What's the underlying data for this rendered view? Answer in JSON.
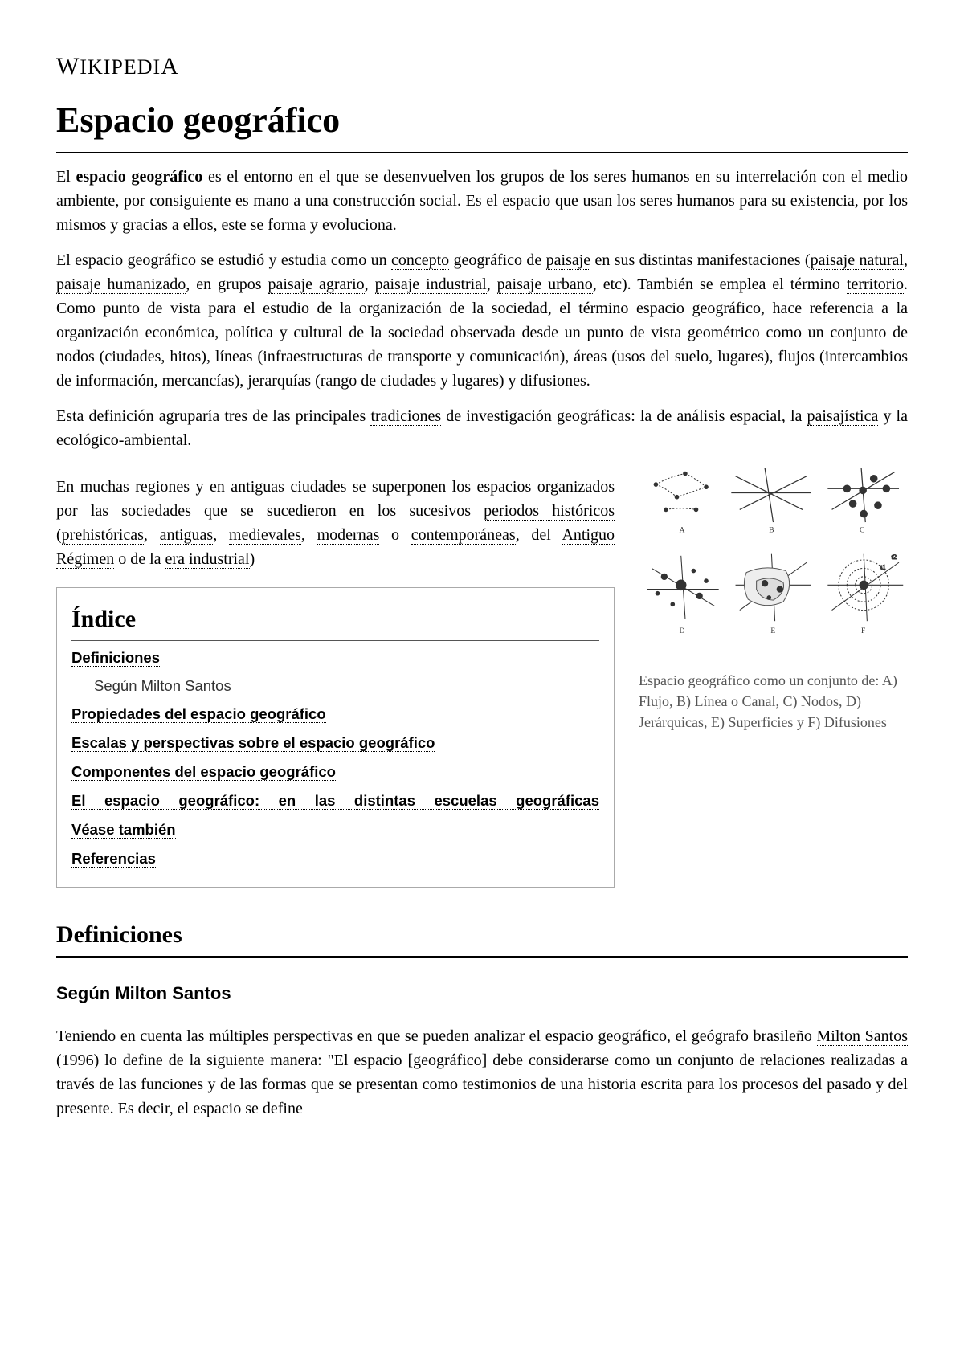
{
  "site_name": "WIKIPEDIA",
  "page_title": "Espacio geográfico",
  "intro": {
    "p1_parts": [
      {
        "t": "El ",
        "b": false
      },
      {
        "t": "espacio geográfico",
        "b": true
      },
      {
        "t": " es el entorno en el que se desenvuelven los grupos de los seres humanos en su interrelación con el ",
        "b": false
      },
      {
        "t": "medio ambiente",
        "link": true
      },
      {
        "t": ", por consiguiente es mano a una ",
        "b": false
      },
      {
        "t": "construcción social",
        "link": true
      },
      {
        "t": ". Es el espacio que usan los seres humanos para su existencia, por los mismos y gracias a ellos, este se forma y evoluciona.",
        "b": false
      }
    ],
    "p2_parts": [
      {
        "t": "El espacio geográfico se estudió y estudia como un "
      },
      {
        "t": "concepto",
        "link": true
      },
      {
        "t": " geográfico de "
      },
      {
        "t": "paisaje",
        "link": true
      },
      {
        "t": " en sus distintas manifestaciones ("
      },
      {
        "t": "paisaje natural",
        "link": true
      },
      {
        "t": ", "
      },
      {
        "t": "paisaje humanizado",
        "link": true
      },
      {
        "t": ", en grupos "
      },
      {
        "t": "paisaje agrario",
        "link": true
      },
      {
        "t": ", "
      },
      {
        "t": "paisaje industrial",
        "link": true
      },
      {
        "t": ", "
      },
      {
        "t": "paisaje urbano",
        "link": true
      },
      {
        "t": ", etc). También se emplea el término "
      },
      {
        "t": "territorio",
        "link": true
      },
      {
        "t": ". Como punto de vista para el estudio de la organización de la sociedad, el término espacio geográfico, hace referencia a la organización económica, política y cultural de la sociedad observada desde un punto de vista geométrico como un conjunto de nodos (ciudades, hitos), líneas (infraestructuras de transporte y comunicación), áreas (usos del suelo, lugares), flujos (intercambios de información, mercancías), jerarquías (rango de ciudades y lugares) y difusiones."
      }
    ],
    "p3_parts": [
      {
        "t": "Esta definición agruparía tres de las principales "
      },
      {
        "t": "tradiciones",
        "link": true
      },
      {
        "t": " de investigación geográficas: la de análisis espacial, la "
      },
      {
        "t": "paisajística",
        "link": true
      },
      {
        "t": " y la ecológico-ambiental."
      }
    ],
    "p4_parts": [
      {
        "t": "En muchas regiones y en antiguas ciudades se superponen los espacios organizados por las sociedades que se sucedieron en los sucesivos "
      },
      {
        "t": "periodos históricos",
        "link": true
      },
      {
        "t": " ("
      },
      {
        "t": "prehistóricas",
        "link": true
      },
      {
        "t": ", "
      },
      {
        "t": "antiguas",
        "link": true
      },
      {
        "t": ", "
      },
      {
        "t": "medievales",
        "link": true
      },
      {
        "t": ", "
      },
      {
        "t": "modernas",
        "link": true
      },
      {
        "t": " o "
      },
      {
        "t": "contemporáneas",
        "link": true
      },
      {
        "t": ", del "
      },
      {
        "t": "Antiguo Régimen",
        "link": true
      },
      {
        "t": " o de la "
      },
      {
        "t": "era industrial",
        "link": true
      },
      {
        "t": ")"
      }
    ]
  },
  "figure": {
    "caption": "Espacio geográfico como un conjunto de: A) Flujo, B) Línea o Canal, C) Nodos, D) Jerárquicas, E) Superficies y F) Difusiones",
    "labels": [
      "A",
      "B",
      "C",
      "D",
      "E",
      "F"
    ]
  },
  "toc": {
    "title": "Índice",
    "items": [
      {
        "label": "Definiciones",
        "sub": [
          {
            "label": "Según Milton Santos"
          }
        ]
      },
      {
        "label": "Propiedades del espacio geográfico"
      },
      {
        "label": "Escalas y perspectivas sobre el espacio geográfico"
      },
      {
        "label": "Componentes del espacio geográfico"
      },
      {
        "label": "El espacio geográfico: en las distintas escuelas geográficas",
        "justify": true
      },
      {
        "label": "Véase también"
      },
      {
        "label": "Referencias"
      }
    ]
  },
  "section1": {
    "heading": "Definiciones",
    "sub_heading": "Según Milton Santos",
    "body_parts": [
      {
        "t": "Teniendo en cuenta las múltiples perspectivas en que se pueden analizar el espacio geográfico, el geógrafo brasileño "
      },
      {
        "t": "Milton Santos",
        "link": true
      },
      {
        "t": " (1996) lo define de la siguiente manera: \"El espacio [geográfico] debe considerarse como un conjunto de relaciones realizadas a través de las funciones y de las formas que se presentan como testimonios de una historia escrita para los procesos del pasado y del presente. Es decir, el espacio se define"
      }
    ]
  }
}
